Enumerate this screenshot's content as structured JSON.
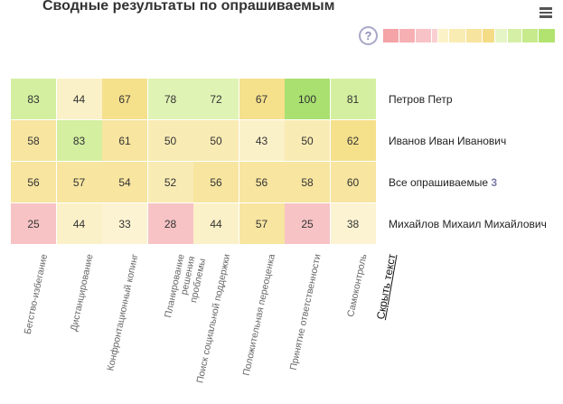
{
  "title": "Сводные результаты по опрашиваемым",
  "help_icon": "question-circle-icon",
  "menu_icon": "hamburger-menu-icon",
  "legend_colors": [
    "#f4a3a6",
    "#f6b0b3",
    "#f8c3c6",
    "#f9cfd1",
    "#fbf2c8",
    "#f9ecb3",
    "#f7e49e",
    "#f4dc86",
    "#e6f5c6",
    "#d6efa6",
    "#c6ea8c",
    "#b2e370"
  ],
  "hide_text": "Скрыть текст",
  "chart_data": {
    "type": "heatmap",
    "title": "Сводные результаты по опрашиваемым",
    "columns": [
      "Бегство-избегание",
      "Дистанцирование",
      "Конфронтационный копинг",
      "Планирование решения проблемы",
      "Поиск социальной поддержки",
      "Положительная переоценка",
      "Принятие ответственности",
      "Самоконтроль"
    ],
    "rows": [
      {
        "label": "Петров Петр",
        "values": [
          83,
          44,
          67,
          78,
          72,
          67,
          100,
          81
        ]
      },
      {
        "label": "Иванов Иван Иванович",
        "values": [
          58,
          83,
          61,
          50,
          50,
          43,
          50,
          62
        ]
      },
      {
        "label": "Все опрашиваемые",
        "count": "3",
        "values": [
          56,
          57,
          54,
          52,
          56,
          56,
          58,
          60
        ]
      },
      {
        "label": "Михайлов Михаил Михайлович",
        "values": [
          25,
          44,
          33,
          28,
          44,
          57,
          25,
          38
        ]
      }
    ],
    "range": [
      0,
      100
    ]
  }
}
